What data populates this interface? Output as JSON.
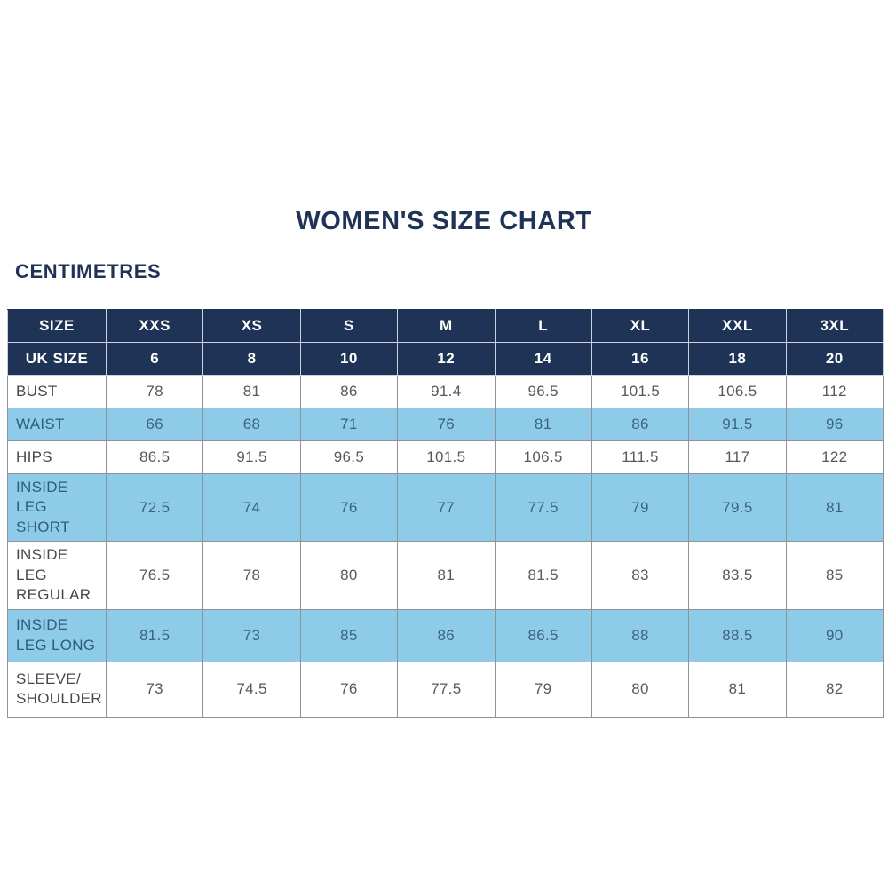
{
  "page": {
    "title": "WOMEN'S SIZE CHART",
    "unit_label": "CENTIMETRES"
  },
  "colors": {
    "navy": "#1e3355",
    "highlight_blue": "#8ecbe9",
    "grid_gray": "#8e939b",
    "text_gray": "#55595f",
    "text_blue_row": "#3c637c"
  },
  "chart_data": {
    "type": "table",
    "title": "WOMEN'S SIZE CHART",
    "unit": "CENTIMETRES",
    "columns": [
      "SIZE",
      "XXS",
      "XS",
      "S",
      "M",
      "L",
      "XL",
      "XXL",
      "3XL"
    ],
    "uk_size_row": {
      "label": "UK SIZE",
      "values": [
        "6",
        "8",
        "10",
        "12",
        "14",
        "16",
        "18",
        "20"
      ]
    },
    "rows": [
      {
        "label": "BUST",
        "highlight": false,
        "values": [
          "78",
          "81",
          "86",
          "91.4",
          "96.5",
          "101.5",
          "106.5",
          "112"
        ]
      },
      {
        "label": "WAIST",
        "highlight": true,
        "values": [
          "66",
          "68",
          "71",
          "76",
          "81",
          "86",
          "91.5",
          "96"
        ]
      },
      {
        "label": "HIPS",
        "highlight": false,
        "values": [
          "86.5",
          "91.5",
          "96.5",
          "101.5",
          "106.5",
          "111.5",
          "117",
          "122"
        ]
      },
      {
        "label": "INSIDE LEG SHORT",
        "highlight": true,
        "values": [
          "72.5",
          "74",
          "76",
          "77",
          "77.5",
          "79",
          "79.5",
          "81"
        ]
      },
      {
        "label": "INSIDE LEG REGULAR",
        "highlight": false,
        "values": [
          "76.5",
          "78",
          "80",
          "81",
          "81.5",
          "83",
          "83.5",
          "85"
        ]
      },
      {
        "label": "INSIDE LEG LONG",
        "highlight": true,
        "values": [
          "81.5",
          "73",
          "85",
          "86",
          "86.5",
          "88",
          "88.5",
          "90"
        ]
      },
      {
        "label": "SLEEVE/ SHOULDER",
        "highlight": false,
        "values": [
          "73",
          "74.5",
          "76",
          "77.5",
          "79",
          "80",
          "81",
          "82"
        ]
      }
    ]
  }
}
